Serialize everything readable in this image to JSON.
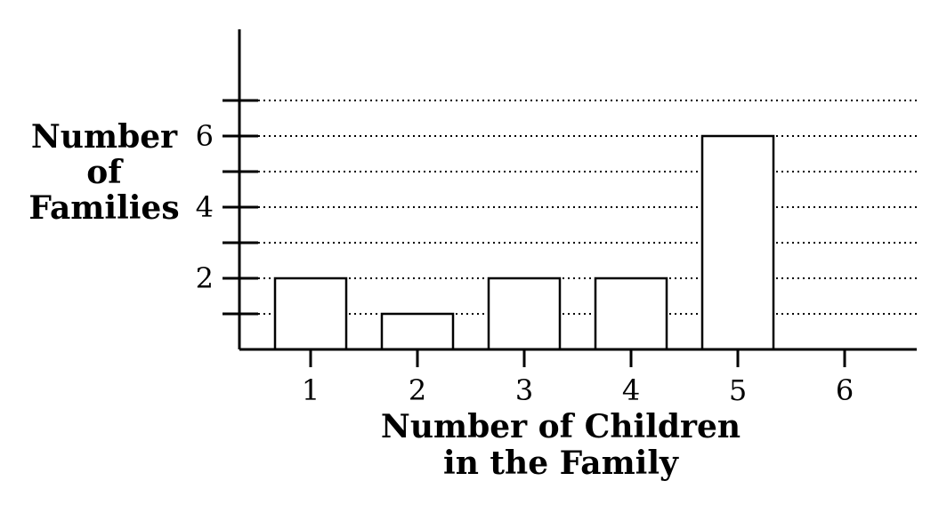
{
  "chart_data": {
    "type": "bar",
    "categories": [
      "1",
      "2",
      "3",
      "4",
      "5",
      "6"
    ],
    "values": [
      2,
      1,
      2,
      2,
      6,
      0
    ],
    "xlabel_lines": [
      "Number of Children",
      "in the Family"
    ],
    "ylabel_lines": [
      "Number",
      "of",
      "Families"
    ],
    "ylim": [
      0,
      7
    ],
    "y_ticks": [
      1,
      2,
      3,
      4,
      5,
      6,
      7
    ],
    "y_tick_labels": [
      "",
      "2",
      "",
      "4",
      "",
      "6",
      ""
    ],
    "grid": true,
    "grid_style": "dotted",
    "legend": "none",
    "colors": {
      "bar_fill": "#ffffff",
      "bar_stroke": "#000000",
      "axis": "#000000"
    }
  }
}
